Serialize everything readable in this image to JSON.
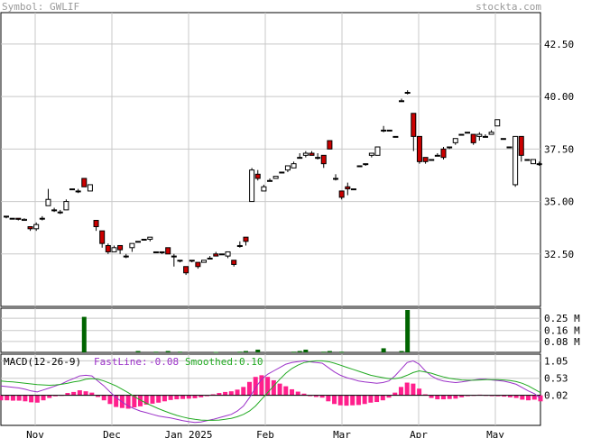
{
  "header": {
    "symbol_label": "Symbol:",
    "symbol": "GWLIF",
    "site": "stockta.com"
  },
  "macd": {
    "title": "MACD(12-26-9)",
    "fast_label": "FastLine:",
    "fast_value": "-0.08",
    "smooth_label": "Smoothed:",
    "smooth_value": "0.10"
  },
  "colors": {
    "up_fill": "#ffffff",
    "down_fill": "#cc0000",
    "candle_edge": "#000000",
    "volume": "#006400",
    "histogram": "#ff1f8c",
    "fast_line": "#9b30c8",
    "smooth_line": "#22aa22",
    "grid": "#c8c8c8",
    "title_fast": "#9b30c8",
    "title_smooth": "#22aa22"
  },
  "chart_data": [
    {
      "type": "candlestick",
      "title": "",
      "x_labels": [
        "Nov",
        "Dec",
        "Jan 2025",
        "Feb",
        "Mar",
        "Apr",
        "May"
      ],
      "y_ticks": [
        "42.50",
        "40.00",
        "37.50",
        "35.00",
        "32.50"
      ],
      "y_tick_values": [
        42.5,
        40.0,
        37.5,
        35.0,
        32.5
      ],
      "ylim": [
        30.0,
        44.0
      ],
      "grid": true,
      "candles": [
        [
          34.3,
          34.3,
          34.3,
          34.2
        ],
        [
          34.2,
          34.2,
          34.2,
          34.2
        ],
        [
          34.2,
          34.15,
          34.2,
          34.1
        ],
        [
          34.1,
          34.15,
          34.2,
          34.1
        ],
        [
          33.8,
          33.7,
          33.8,
          33.6
        ],
        [
          33.7,
          33.9,
          34.0,
          33.6
        ],
        [
          34.2,
          34.2,
          34.3,
          34.1
        ],
        [
          34.8,
          35.1,
          35.6,
          34.8
        ],
        [
          34.6,
          34.6,
          34.7,
          34.5
        ],
        [
          34.5,
          34.5,
          34.6,
          34.4
        ],
        [
          34.6,
          35.0,
          35.1,
          34.6
        ],
        [
          35.6,
          35.6,
          35.6,
          35.6
        ],
        [
          35.5,
          35.5,
          35.6,
          35.4
        ],
        [
          36.1,
          35.7,
          36.1,
          35.7
        ],
        [
          35.5,
          35.8,
          35.8,
          35.5
        ],
        [
          34.1,
          33.8,
          34.1,
          33.6
        ],
        [
          33.6,
          33.0,
          33.6,
          32.8
        ],
        [
          32.9,
          32.6,
          33.0,
          32.5
        ],
        [
          32.6,
          32.8,
          32.9,
          32.6
        ],
        [
          32.9,
          32.7,
          32.9,
          32.5
        ],
        [
          32.4,
          32.4,
          32.5,
          32.3
        ],
        [
          32.8,
          33.0,
          33.0,
          32.6
        ],
        [
          33.1,
          33.1,
          33.1,
          33.1
        ],
        [
          33.2,
          33.2,
          33.2,
          33.2
        ],
        [
          33.2,
          33.3,
          33.3,
          33.1
        ],
        [
          32.6,
          32.6,
          32.6,
          32.6
        ],
        [
          32.6,
          32.6,
          32.6,
          32.5
        ],
        [
          32.8,
          32.5,
          32.8,
          32.5
        ],
        [
          32.4,
          32.4,
          32.5,
          31.9
        ],
        [
          32.2,
          32.2,
          32.2,
          32.1
        ],
        [
          31.9,
          31.6,
          31.9,
          31.5
        ],
        [
          32.2,
          32.2,
          32.2,
          32.1
        ],
        [
          32.1,
          31.9,
          32.1,
          31.8
        ],
        [
          32.1,
          32.2,
          32.2,
          32.1
        ],
        [
          32.3,
          32.3,
          32.4,
          32.3
        ],
        [
          32.5,
          32.4,
          32.6,
          32.4
        ],
        [
          32.5,
          32.5,
          32.5,
          32.5
        ],
        [
          32.4,
          32.6,
          32.6,
          32.3
        ],
        [
          32.2,
          32.0,
          32.2,
          31.9
        ],
        [
          32.9,
          32.9,
          33.1,
          32.8
        ],
        [
          33.3,
          33.1,
          33.3,
          32.9
        ],
        [
          35.0,
          36.5,
          36.6,
          35.0
        ],
        [
          36.3,
          36.1,
          36.5,
          36.0
        ],
        [
          35.5,
          35.7,
          35.8,
          35.5
        ],
        [
          36.0,
          36.0,
          36.1,
          36.0
        ],
        [
          36.1,
          36.2,
          36.2,
          36.1
        ],
        [
          36.4,
          36.4,
          36.4,
          36.4
        ],
        [
          36.5,
          36.7,
          36.7,
          36.4
        ],
        [
          36.6,
          36.8,
          36.9,
          36.6
        ],
        [
          37.1,
          37.1,
          37.3,
          37.1
        ],
        [
          37.2,
          37.3,
          37.4,
          37.1
        ],
        [
          37.3,
          37.2,
          37.4,
          37.2
        ],
        [
          37.1,
          37.1,
          37.3,
          37.0
        ],
        [
          37.2,
          36.8,
          37.2,
          36.6
        ],
        [
          37.9,
          37.5,
          37.9,
          37.5
        ],
        [
          36.1,
          36.1,
          36.3,
          36.0
        ],
        [
          35.5,
          35.2,
          35.5,
          35.1
        ],
        [
          35.7,
          35.6,
          35.9,
          35.3
        ],
        [
          35.6,
          35.6,
          35.6,
          35.6
        ],
        [
          36.7,
          36.7,
          36.7,
          36.7
        ],
        [
          36.8,
          36.8,
          36.8,
          36.7
        ],
        [
          37.2,
          37.3,
          37.3,
          37.1
        ],
        [
          37.2,
          37.6,
          37.6,
          37.2
        ],
        [
          38.4,
          38.4,
          38.6,
          38.3
        ],
        [
          38.4,
          38.4,
          38.4,
          38.4
        ],
        [
          38.1,
          38.1,
          38.1,
          38.1
        ],
        [
          39.8,
          39.8,
          39.9,
          39.8
        ],
        [
          40.2,
          40.2,
          40.3,
          40.1
        ],
        [
          39.2,
          38.1,
          39.2,
          37.4
        ],
        [
          38.1,
          36.9,
          38.1,
          36.8
        ],
        [
          37.1,
          36.9,
          37.1,
          36.8
        ],
        [
          37.0,
          37.0,
          37.0,
          37.0
        ],
        [
          37.2,
          37.2,
          37.3,
          37.2
        ],
        [
          37.5,
          37.1,
          37.6,
          37.0
        ],
        [
          37.6,
          37.6,
          37.6,
          37.5
        ],
        [
          37.8,
          38.0,
          38.0,
          37.7
        ],
        [
          38.2,
          38.2,
          38.2,
          38.2
        ],
        [
          38.3,
          38.3,
          38.3,
          38.3
        ],
        [
          38.2,
          37.8,
          38.2,
          37.7
        ],
        [
          38.1,
          38.2,
          38.3,
          37.9
        ],
        [
          38.1,
          38.1,
          38.2,
          38.1
        ],
        [
          38.2,
          38.3,
          38.4,
          38.2
        ],
        [
          38.6,
          38.9,
          38.9,
          38.6
        ],
        [
          38.0,
          38.0,
          38.0,
          38.0
        ],
        [
          37.6,
          37.6,
          37.6,
          37.6
        ],
        [
          35.8,
          38.1,
          38.1,
          35.7
        ],
        [
          38.1,
          37.2,
          38.1,
          36.9
        ],
        [
          37.0,
          37.0,
          37.0,
          37.0
        ],
        [
          36.8,
          37.0,
          37.0,
          36.8
        ],
        [
          36.8,
          36.8,
          36.9,
          36.7
        ]
      ]
    },
    {
      "type": "bar",
      "title": "",
      "y_ticks": [
        "0.25 M",
        "0.16 M",
        "0.08 M"
      ],
      "y_tick_values": [
        0.25,
        0.16,
        0.08
      ],
      "ylim": [
        0,
        0.31
      ],
      "unit": "M",
      "values": [
        0,
        0,
        0,
        0,
        0,
        0,
        0,
        0,
        0,
        0,
        0,
        0,
        0,
        0.26,
        0,
        0,
        0,
        0,
        0,
        0,
        0,
        0,
        0.01,
        0,
        0,
        0.005,
        0,
        0.01,
        0,
        0.005,
        0,
        0,
        0,
        0,
        0,
        0.003,
        0,
        0,
        0,
        0.005,
        0.01,
        0,
        0.02,
        0,
        0,
        0,
        0,
        0,
        0.005,
        0.01,
        0.02,
        0,
        0,
        0.005,
        0.01,
        0,
        0.005,
        0,
        0,
        0,
        0,
        0,
        0,
        0.03,
        0,
        0,
        0.01,
        0.31,
        0,
        0,
        0,
        0,
        0,
        0,
        0,
        0,
        0,
        0,
        0,
        0,
        0,
        0,
        0,
        0,
        0,
        0,
        0,
        0,
        0
      ]
    },
    {
      "type": "line",
      "title": "MACD(12-26-9)",
      "y_ticks": [
        "1.05",
        "0.53",
        "0.02"
      ],
      "y_tick_values": [
        1.05,
        0.53,
        0.02
      ],
      "ylim": [
        -0.88,
        1.25
      ],
      "grid": true,
      "series": [
        {
          "name": "FastLine",
          "values": [
            0.3,
            0.28,
            0.26,
            0.24,
            0.2,
            0.15,
            0.12,
            0.18,
            0.24,
            0.3,
            0.36,
            0.45,
            0.52,
            0.6,
            0.62,
            0.6,
            0.45,
            0.3,
            0.12,
            -0.05,
            -0.18,
            -0.3,
            -0.38,
            -0.45,
            -0.5,
            -0.55,
            -0.6,
            -0.63,
            -0.66,
            -0.7,
            -0.74,
            -0.77,
            -0.79,
            -0.78,
            -0.74,
            -0.7,
            -0.65,
            -0.6,
            -0.55,
            -0.45,
            -0.3,
            -0.05,
            0.25,
            0.5,
            0.65,
            0.75,
            0.85,
            0.95,
            1.0,
            1.03,
            1.05,
            1.02,
            1.0,
            0.98,
            0.85,
            0.72,
            0.62,
            0.55,
            0.5,
            0.45,
            0.42,
            0.4,
            0.38,
            0.4,
            0.45,
            0.6,
            0.8,
            1.0,
            1.05,
            0.95,
            0.75,
            0.6,
            0.5,
            0.45,
            0.42,
            0.4,
            0.42,
            0.45,
            0.48,
            0.5,
            0.5,
            0.48,
            0.46,
            0.44,
            0.4,
            0.35,
            0.25,
            0.15,
            0.07,
            -0.08
          ]
        },
        {
          "name": "Smoothed",
          "values": [
            0.45,
            0.43,
            0.42,
            0.4,
            0.38,
            0.36,
            0.34,
            0.33,
            0.32,
            0.33,
            0.35,
            0.38,
            0.42,
            0.45,
            0.5,
            0.52,
            0.5,
            0.45,
            0.38,
            0.3,
            0.2,
            0.1,
            -0.02,
            -0.12,
            -0.22,
            -0.3,
            -0.38,
            -0.45,
            -0.52,
            -0.58,
            -0.63,
            -0.67,
            -0.7,
            -0.72,
            -0.73,
            -0.73,
            -0.72,
            -0.7,
            -0.67,
            -0.62,
            -0.55,
            -0.45,
            -0.3,
            -0.1,
            0.1,
            0.3,
            0.5,
            0.68,
            0.82,
            0.92,
            1.0,
            1.03,
            1.05,
            1.05,
            1.03,
            0.98,
            0.92,
            0.86,
            0.8,
            0.74,
            0.68,
            0.62,
            0.58,
            0.55,
            0.52,
            0.52,
            0.55,
            0.62,
            0.7,
            0.75,
            0.72,
            0.68,
            0.62,
            0.57,
            0.53,
            0.5,
            0.48,
            0.47,
            0.47,
            0.48,
            0.49,
            0.49,
            0.49,
            0.48,
            0.46,
            0.43,
            0.38,
            0.3,
            0.2,
            0.1
          ]
        }
      ]
    }
  ]
}
